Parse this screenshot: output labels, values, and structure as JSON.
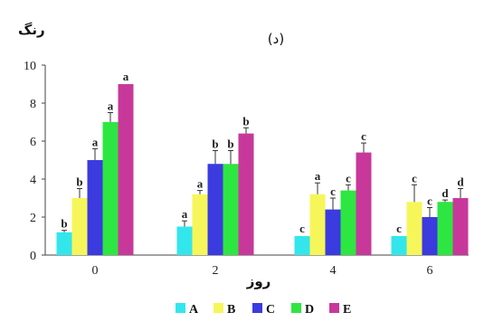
{
  "chart_data": {
    "type": "bar",
    "title": "(د)",
    "ylabel": "رنگ",
    "xlabel": "روز",
    "ylim": [
      0,
      10
    ],
    "yticks": [
      "0",
      "2",
      "4",
      "6",
      "8",
      "10"
    ],
    "categories": [
      "0",
      "2",
      "4",
      "6"
    ],
    "series": [
      {
        "name": "A",
        "color": "#33e6ec",
        "values": [
          1.2,
          1.5,
          1.0,
          1.0
        ],
        "errors": [
          0.1,
          0.3,
          0.0,
          0.0
        ],
        "letters": [
          "b",
          "a",
          "c",
          "c"
        ]
      },
      {
        "name": "B",
        "color": "#f6f65a",
        "values": [
          3.0,
          3.2,
          3.2,
          2.8
        ],
        "errors": [
          0.5,
          0.2,
          0.6,
          0.9
        ],
        "letters": [
          "b",
          "a",
          "a",
          "c"
        ]
      },
      {
        "name": "C",
        "color": "#3b3be0",
        "values": [
          5.0,
          4.8,
          2.4,
          2.0
        ],
        "errors": [
          0.6,
          0.7,
          0.6,
          0.5
        ],
        "letters": [
          "a",
          "b",
          "c",
          "c"
        ]
      },
      {
        "name": "D",
        "color": "#2ee642",
        "values": [
          7.0,
          4.8,
          3.4,
          2.8
        ],
        "errors": [
          0.5,
          0.7,
          0.3,
          0.1
        ],
        "letters": [
          "a",
          "b",
          "c",
          "d"
        ]
      },
      {
        "name": "E",
        "color": "#c8389a",
        "values": [
          9.0,
          6.4,
          5.4,
          3.0
        ],
        "errors": [
          0.0,
          0.3,
          0.5,
          0.5
        ],
        "letters": [
          "a",
          "b",
          "c",
          "d"
        ]
      }
    ],
    "legend": "bottom",
    "grid": false
  }
}
